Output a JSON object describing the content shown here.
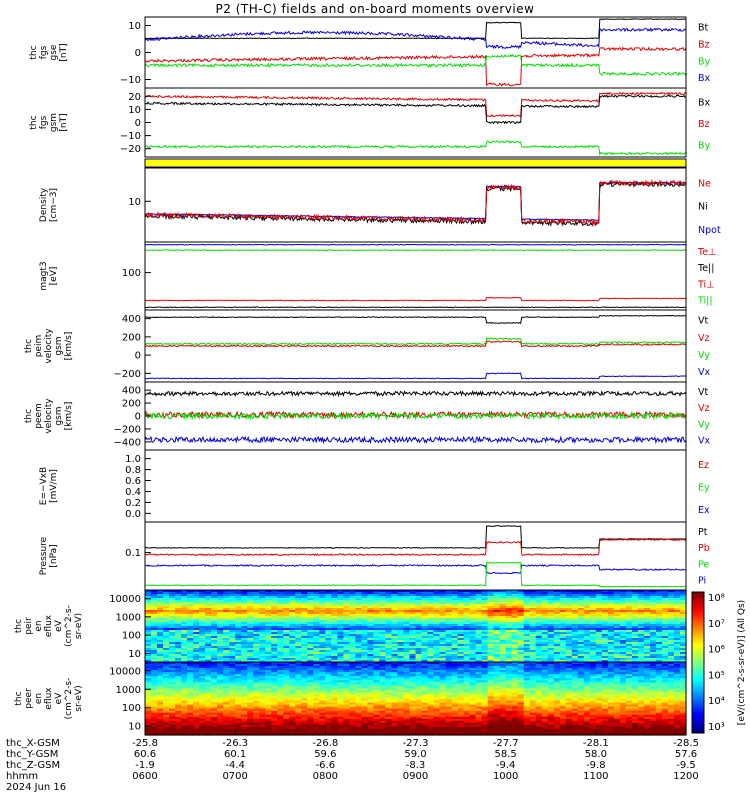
{
  "title": "P2 (TH-C) fields and on-board moments overview",
  "colors": {
    "black": "#000000",
    "red": "#e00000",
    "green": "#00dd00",
    "blue": "#0000e0",
    "yellow": "#ffff00"
  },
  "chart_data": [
    {
      "type": "line",
      "id": "fgs_gse",
      "ylabel": [
        "thc",
        "fgs",
        "gse",
        "[nT]"
      ],
      "yticks": [
        "10",
        "0",
        "−10"
      ],
      "legend": [
        {
          "name": "Bt",
          "color": "black"
        },
        {
          "name": "Bz",
          "color": "red"
        },
        {
          "name": "By",
          "color": "green"
        },
        {
          "name": "Bx",
          "color": "blue"
        }
      ]
    },
    {
      "type": "line",
      "id": "fgs_gsm",
      "ylabel": [
        "thc",
        "fgs",
        "gsm",
        "[nT]"
      ],
      "yticks": [
        "20",
        "10",
        "0",
        "−10",
        "−20"
      ],
      "legend": [
        {
          "name": "Bx",
          "color": "black"
        },
        {
          "name": "Bz",
          "color": "red"
        },
        {
          "name": "By",
          "color": "green"
        }
      ]
    },
    {
      "type": "bar",
      "id": "mode_bar"
    },
    {
      "type": "line",
      "id": "density",
      "ylabel": [
        "Density",
        "[cm−3]"
      ],
      "yticks": [
        "10"
      ],
      "legend": [
        {
          "name": "Ne",
          "color": "red"
        },
        {
          "name": "Ni",
          "color": "black"
        },
        {
          "name": "Npot",
          "color": "blue"
        }
      ]
    },
    {
      "type": "line",
      "id": "temperature",
      "ylabel": [
        "magt3",
        "[eV]"
      ],
      "yticks": [
        "100"
      ],
      "legend": [
        {
          "name": "Te⊥",
          "color": "red"
        },
        {
          "name": "Te||",
          "color": "black"
        },
        {
          "name": "Ti⊥",
          "color": "red"
        },
        {
          "name": "Ti||",
          "color": "green"
        }
      ]
    },
    {
      "type": "line",
      "id": "ion_velocity",
      "ylabel": [
        "thc",
        "peim",
        "velocity",
        "gsm",
        "[km/s]"
      ],
      "yticks": [
        "400",
        "200",
        "0",
        "−200"
      ],
      "legend": [
        {
          "name": "Vt",
          "color": "black"
        },
        {
          "name": "Vz",
          "color": "red"
        },
        {
          "name": "Vy",
          "color": "green"
        },
        {
          "name": "Vx",
          "color": "blue"
        }
      ]
    },
    {
      "type": "line",
      "id": "electron_velocity",
      "ylabel": [
        "thc",
        "peem",
        "velocity",
        "gsm",
        "[km/s]"
      ],
      "yticks": [
        "400",
        "200",
        "0",
        "−200",
        "−400"
      ],
      "legend": [
        {
          "name": "Vt",
          "color": "black"
        },
        {
          "name": "Vz",
          "color": "red"
        },
        {
          "name": "Vy",
          "color": "green"
        },
        {
          "name": "Vx",
          "color": "blue"
        }
      ]
    },
    {
      "type": "line",
      "id": "efield",
      "ylabel": [
        "E=−VxB",
        "[mV/m]"
      ],
      "yticks": [
        "1.0",
        "0.8",
        "0.6",
        "0.4",
        "0.2",
        "0.0"
      ],
      "legend": [
        {
          "name": "Ez",
          "color": "red"
        },
        {
          "name": "Ey",
          "color": "green"
        },
        {
          "name": "Ex",
          "color": "blue"
        }
      ]
    },
    {
      "type": "line",
      "id": "pressure",
      "ylabel": [
        "Pressure",
        "[nPa]"
      ],
      "yticks": [
        "0.1"
      ],
      "legend": [
        {
          "name": "Pt",
          "color": "black"
        },
        {
          "name": "Pb",
          "color": "red"
        },
        {
          "name": "Pe",
          "color": "green"
        },
        {
          "name": "Pi",
          "color": "blue"
        }
      ]
    },
    {
      "type": "heatmap",
      "id": "ion_spectrogram",
      "ylabel": [
        "thc",
        "peir",
        "en",
        "eflux",
        "eV",
        "(cm^2-s-",
        "sr-eV)"
      ],
      "yticks": [
        "10000",
        "1000",
        "100",
        "10"
      ]
    },
    {
      "type": "heatmap",
      "id": "electron_spectrogram",
      "ylabel": [
        "thc",
        "peer",
        "en",
        "eflux",
        "eV",
        "(cm^2-s-",
        "sr-eV)"
      ],
      "yticks": [
        "10000",
        "1000",
        "100",
        "10"
      ]
    }
  ],
  "colorbar": {
    "ticks": [
      "10⁸",
      "10⁷",
      "10⁶",
      "10⁵",
      "10⁴",
      "10³"
    ],
    "label": "[eV/(cm^2-s-sr-eV)] (All Qs)"
  },
  "footer": {
    "row_labels": [
      "thc_X-GSM",
      "thc_Y-GSM",
      "thc_Z-GSM",
      "hhmm",
      "2024 Jun 16"
    ],
    "columns": [
      {
        "x": "-25.8",
        "y": "60.6",
        "z": "-1.9",
        "hhmm": "0600"
      },
      {
        "x": "-26.3",
        "y": "60.1",
        "z": "-4.4",
        "hhmm": "0700"
      },
      {
        "x": "-26.8",
        "y": "59.6",
        "z": "-6.6",
        "hhmm": "0800"
      },
      {
        "x": "-27.3",
        "y": "59.0",
        "z": "-8.3",
        "hhmm": "0900"
      },
      {
        "x": "-27.7",
        "y": "58.5",
        "z": "-9.4",
        "hhmm": "1000"
      },
      {
        "x": "-28.1",
        "y": "58.0",
        "z": "-9.8",
        "hhmm": "1100"
      },
      {
        "x": "-28.5",
        "y": "57.6",
        "z": "-9.5",
        "hhmm": "1200"
      }
    ]
  }
}
